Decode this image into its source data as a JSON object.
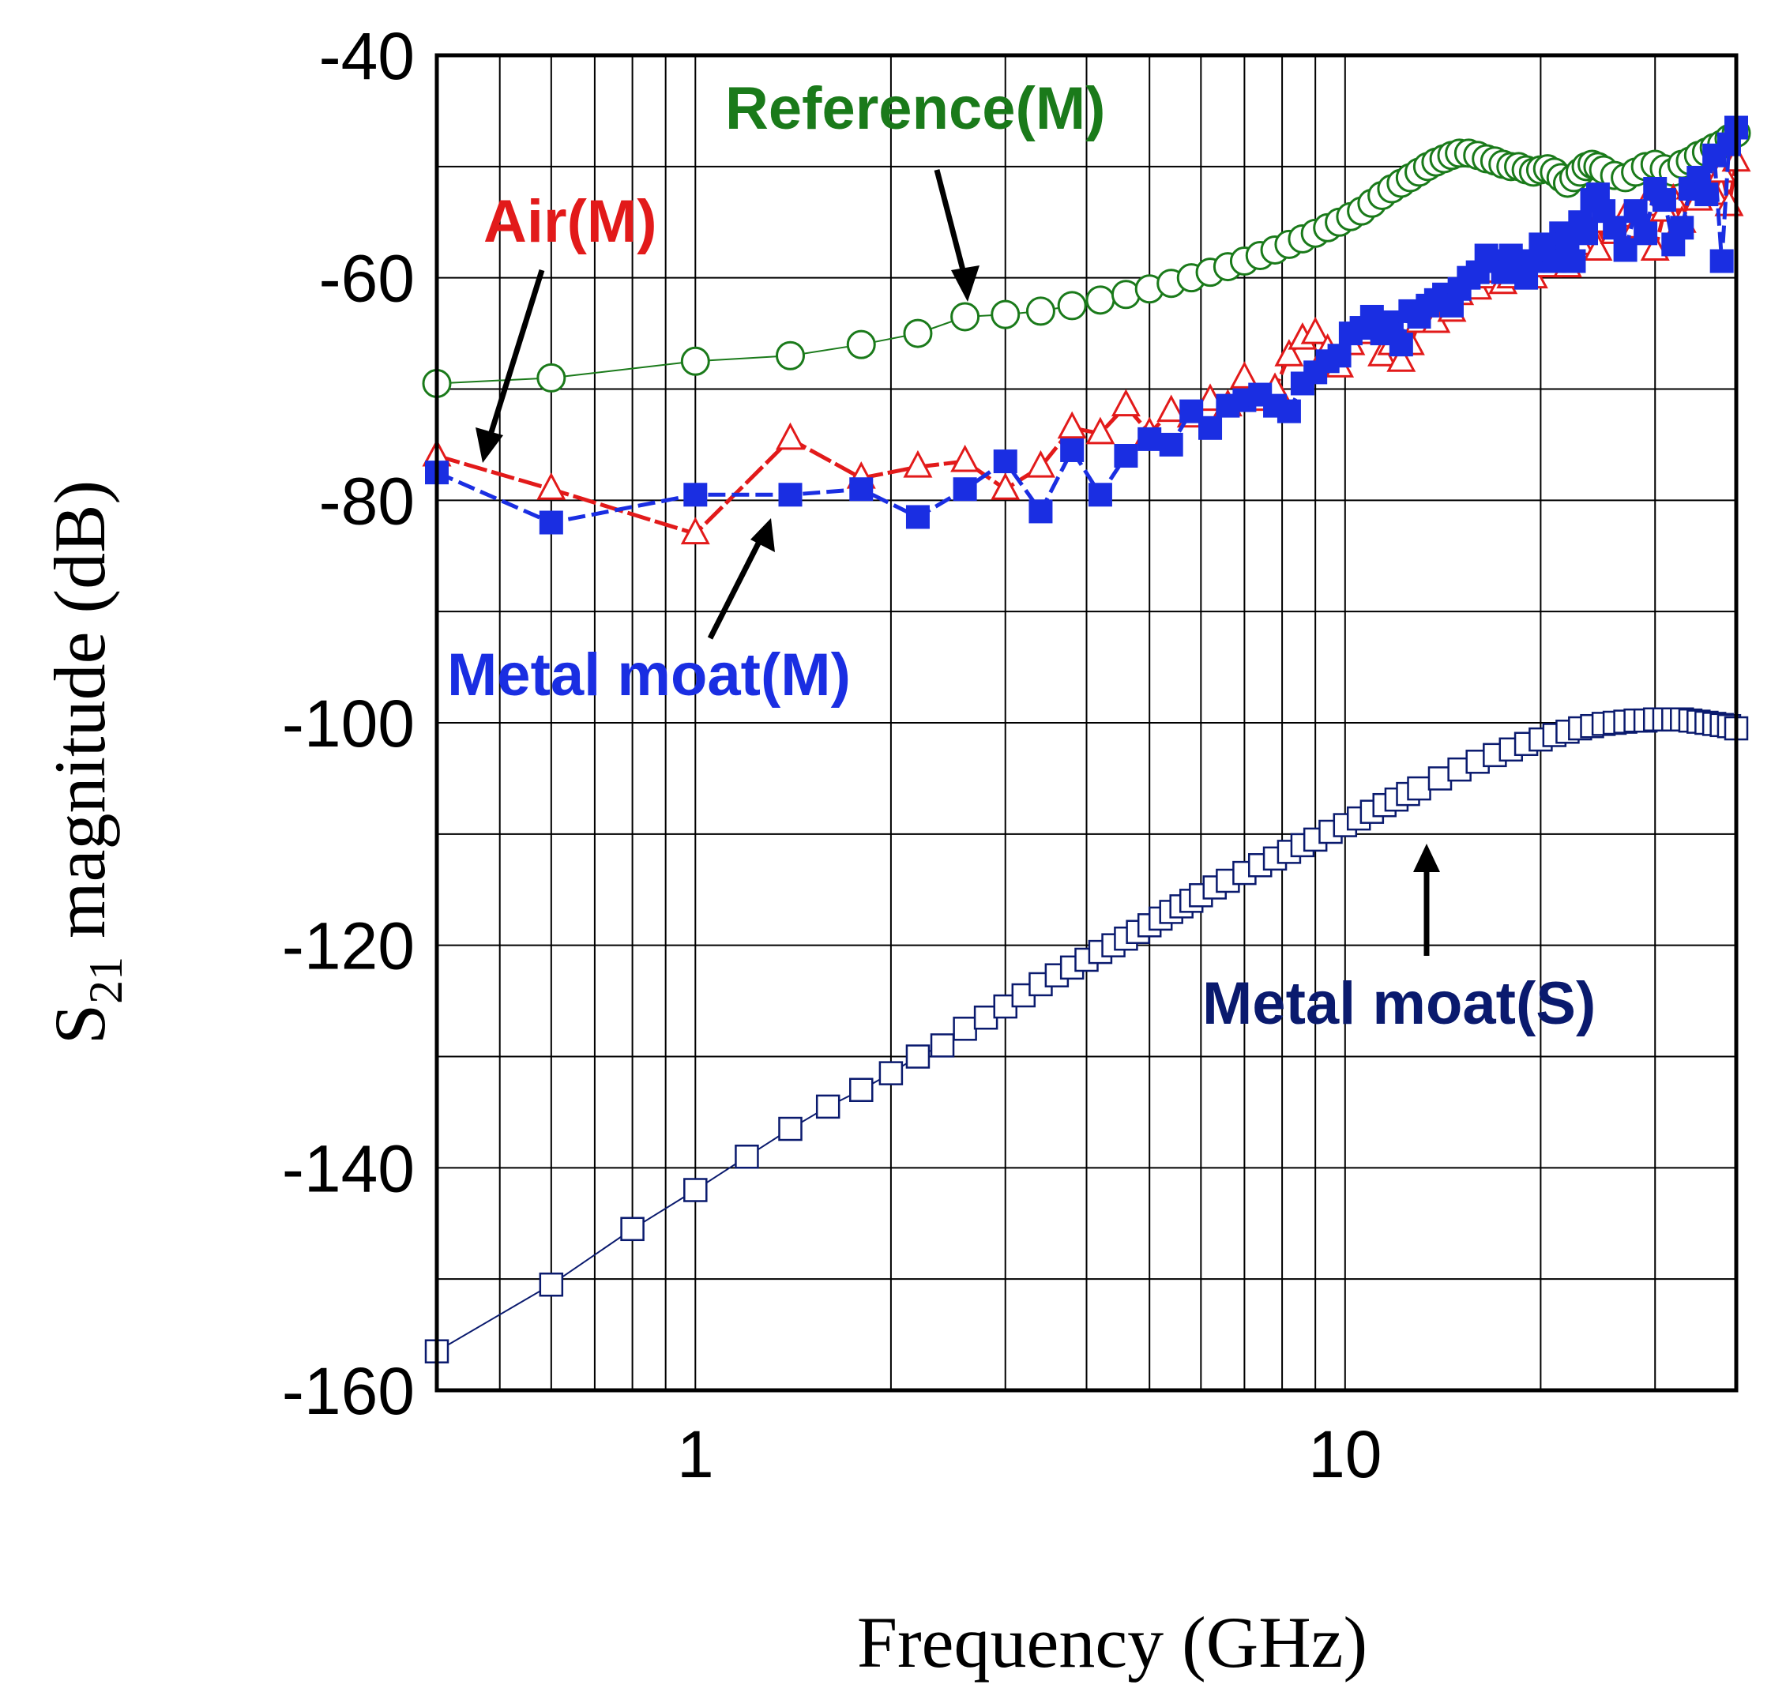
{
  "chart_data": {
    "type": "scatter",
    "xlabel": "Frequency (GHz)",
    "ylabel_main": "S",
    "ylabel_sub": "21",
    "ylabel_rest": " magnitude (dB)",
    "xscale": "log",
    "xlim": [
      0.4,
      40
    ],
    "ylim": [
      -160,
      -40
    ],
    "x_ticks": [
      {
        "value": 1,
        "label": "1"
      },
      {
        "value": 10,
        "label": "10"
      }
    ],
    "y_ticks": [
      {
        "value": -40,
        "label": "-40"
      },
      {
        "value": -60,
        "label": "-60"
      },
      {
        "value": -80,
        "label": "-80"
      },
      {
        "value": -100,
        "label": "-100"
      },
      {
        "value": -120,
        "label": "-120"
      },
      {
        "value": -140,
        "label": "-140"
      },
      {
        "value": -160,
        "label": "-160"
      }
    ],
    "grid": true,
    "series": [
      {
        "name": "Reference(M)",
        "color": "#1a7a1a",
        "marker": "open-circle",
        "x": [
          0.4,
          0.6,
          1.0,
          1.4,
          1.8,
          2.2,
          2.6,
          3.0,
          3.4,
          3.8,
          4.2,
          4.6,
          5.0,
          5.4,
          5.8,
          6.2,
          6.6,
          7.0,
          7.4,
          7.8,
          8.2,
          8.6,
          9.0,
          9.4,
          9.8,
          10.2,
          10.6,
          11.0,
          11.4,
          11.8,
          12.2,
          12.6,
          13.0,
          13.4,
          13.8,
          14.2,
          14.6,
          15.0,
          15.5,
          16.0,
          16.5,
          17.0,
          17.5,
          18.0,
          18.5,
          19.0,
          19.5,
          20.0,
          20.5,
          21.0,
          21.5,
          22.0,
          22.5,
          23.0,
          23.5,
          24.0,
          24.5,
          25.0,
          26.0,
          27.0,
          28.0,
          29.0,
          30.0,
          31.0,
          32.0,
          33.0,
          34.0,
          35.0,
          36.0,
          37.0,
          38.0,
          39.0,
          40.0
        ],
        "y": [
          -69.5,
          -69.0,
          -67.5,
          -67.0,
          -66.0,
          -65.0,
          -63.5,
          -63.3,
          -63.0,
          -62.5,
          -62.0,
          -61.5,
          -61.0,
          -60.5,
          -60.0,
          -59.5,
          -59.0,
          -58.5,
          -58.0,
          -57.5,
          -57.0,
          -56.5,
          -56.0,
          -55.5,
          -55.0,
          -54.5,
          -54.0,
          -53.3,
          -52.6,
          -52.0,
          -51.5,
          -51.0,
          -50.5,
          -50.0,
          -49.6,
          -49.3,
          -49.0,
          -48.8,
          -48.8,
          -49.0,
          -49.3,
          -49.5,
          -49.8,
          -50.0,
          -50.0,
          -50.3,
          -50.5,
          -50.3,
          -50.2,
          -50.5,
          -51.0,
          -51.5,
          -51.0,
          -50.5,
          -50.0,
          -49.8,
          -50.0,
          -50.3,
          -50.8,
          -51.0,
          -50.5,
          -50.0,
          -49.8,
          -50.2,
          -50.5,
          -49.8,
          -49.5,
          -49.0,
          -48.7,
          -48.3,
          -48.0,
          -47.5,
          -47.0
        ]
      },
      {
        "name": "Air(M)",
        "color": "#e21a1a",
        "marker": "open-triangle",
        "x": [
          0.4,
          0.6,
          1.0,
          1.4,
          1.8,
          2.2,
          2.6,
          3.0,
          3.4,
          3.8,
          4.2,
          4.6,
          5.0,
          5.4,
          5.8,
          6.2,
          6.6,
          7.0,
          7.4,
          7.8,
          8.2,
          8.6,
          9.0,
          9.4,
          9.8,
          10.2,
          10.6,
          11.0,
          11.4,
          11.8,
          12.2,
          12.6,
          13.0,
          13.4,
          13.8,
          14.2,
          14.6,
          15.0,
          15.5,
          16.0,
          16.5,
          17.0,
          17.5,
          18.0,
          18.5,
          19.0,
          19.5,
          20.0,
          20.5,
          21.0,
          21.5,
          22.0,
          22.5,
          23.0,
          23.5,
          24.0,
          24.5,
          25.0,
          26.0,
          27.0,
          28.0,
          29.0,
          30.0,
          31.0,
          32.0,
          33.0,
          34.0,
          35.0,
          36.0,
          37.0,
          38.0,
          39.0,
          40.0
        ],
        "y": [
          -76.0,
          -79.0,
          -83.0,
          -74.5,
          -78.0,
          -77.0,
          -76.5,
          -79.0,
          -77.0,
          -73.5,
          -74.0,
          -71.5,
          -74.0,
          -72.0,
          -72.5,
          -71.0,
          -71.5,
          -69.0,
          -71.0,
          -70.0,
          -67.0,
          -65.5,
          -65.0,
          -66.5,
          -68.0,
          -66.0,
          -65.0,
          -64.5,
          -67.0,
          -66.0,
          -67.5,
          -66.0,
          -64.0,
          -62.5,
          -64.0,
          -62.0,
          -63.0,
          -61.5,
          -60.5,
          -61.0,
          -60.0,
          -59.5,
          -60.5,
          -60.0,
          -59.0,
          -59.5,
          -60.0,
          -58.5,
          -59.0,
          -57.5,
          -58.0,
          -59.0,
          -56.5,
          -57.0,
          -55.5,
          -56.0,
          -57.5,
          -55.0,
          -56.0,
          -54.5,
          -55.5,
          -53.5,
          -57.5,
          -54.0,
          -53.0,
          -55.0,
          -52.0,
          -53.0,
          -51.5,
          -52.5,
          -50.5,
          -53.5,
          -49.5
        ]
      },
      {
        "name": "Metal moat(M)",
        "color": "#1a2ee2",
        "marker": "filled-square",
        "x": [
          0.4,
          0.6,
          1.0,
          1.4,
          1.8,
          2.2,
          2.6,
          3.0,
          3.4,
          3.8,
          4.2,
          4.6,
          5.0,
          5.4,
          5.8,
          6.2,
          6.6,
          7.0,
          7.4,
          7.8,
          8.2,
          8.6,
          9.0,
          9.4,
          9.8,
          10.2,
          10.6,
          11.0,
          11.4,
          11.8,
          12.2,
          12.6,
          13.0,
          13.4,
          13.8,
          14.2,
          14.6,
          15.0,
          15.5,
          16.0,
          16.5,
          17.0,
          17.5,
          18.0,
          18.5,
          19.0,
          19.5,
          20.0,
          20.5,
          21.0,
          21.5,
          22.0,
          22.5,
          23.0,
          23.5,
          24.0,
          24.5,
          25.0,
          26.0,
          27.0,
          28.0,
          29.0,
          30.0,
          31.0,
          32.0,
          33.0,
          34.0,
          35.0,
          36.0,
          37.0,
          38.0,
          39.0,
          40.0
        ],
        "y": [
          -77.5,
          -82.0,
          -79.5,
          -79.5,
          -79.0,
          -81.5,
          -79.0,
          -76.5,
          -81.0,
          -75.5,
          -79.5,
          -76.0,
          -74.5,
          -75.0,
          -72.0,
          -73.5,
          -71.5,
          -71.0,
          -70.5,
          -71.5,
          -72.0,
          -69.5,
          -68.5,
          -67.5,
          -67.0,
          -65.0,
          -64.5,
          -63.5,
          -65.0,
          -64.0,
          -66.0,
          -63.0,
          -63.5,
          -62.5,
          -62.0,
          -61.5,
          -62.5,
          -61.0,
          -60.0,
          -59.5,
          -58.0,
          -58.5,
          -59.5,
          -58.0,
          -59.0,
          -60.0,
          -58.5,
          -57.0,
          -57.5,
          -58.5,
          -56.0,
          -57.0,
          -58.5,
          -55.0,
          -56.0,
          -53.0,
          -52.5,
          -54.0,
          -55.5,
          -57.5,
          -54.0,
          -56.0,
          -52.0,
          -53.0,
          -57.0,
          -55.5,
          -52.0,
          -51.0,
          -52.5,
          -49.0,
          -58.5,
          -48.0,
          -46.5
        ]
      },
      {
        "name": "Metal moat(S)",
        "color": "#0a1a6e",
        "marker": "open-square",
        "x": [
          0.4,
          0.6,
          0.8,
          1.0,
          1.2,
          1.4,
          1.6,
          1.8,
          2.0,
          2.2,
          2.4,
          2.6,
          2.8,
          3.0,
          3.2,
          3.4,
          3.6,
          3.8,
          4.0,
          4.2,
          4.4,
          4.6,
          4.8,
          5.0,
          5.2,
          5.4,
          5.6,
          5.8,
          6.0,
          6.3,
          6.6,
          7.0,
          7.4,
          7.8,
          8.2,
          8.6,
          9.0,
          9.5,
          10.0,
          10.5,
          11.0,
          11.5,
          12.0,
          12.5,
          13.0,
          14.0,
          15.0,
          16.0,
          17.0,
          18.0,
          19.0,
          20.0,
          21.0,
          22.0,
          23.0,
          24.0,
          25.0,
          26.0,
          27.0,
          28.0,
          29.0,
          30.0,
          31.0,
          32.0,
          33.0,
          34.0,
          35.0,
          36.0,
          37.0,
          38.0,
          39.0,
          40.0
        ],
        "y": [
          -156.5,
          -150.5,
          -145.5,
          -142.0,
          -139.0,
          -136.5,
          -134.5,
          -133.0,
          -131.5,
          -130.0,
          -129.0,
          -127.5,
          -126.5,
          -125.5,
          -124.5,
          -123.5,
          -122.7,
          -122.0,
          -121.3,
          -120.6,
          -120.0,
          -119.4,
          -118.8,
          -118.2,
          -117.6,
          -117.0,
          -116.5,
          -116.0,
          -115.5,
          -114.8,
          -114.2,
          -113.5,
          -112.8,
          -112.2,
          -111.6,
          -111.0,
          -110.5,
          -109.8,
          -109.2,
          -108.6,
          -108.0,
          -107.4,
          -106.9,
          -106.4,
          -105.9,
          -105.0,
          -104.2,
          -103.5,
          -102.9,
          -102.4,
          -101.9,
          -101.5,
          -101.1,
          -100.8,
          -100.5,
          -100.3,
          -100.1,
          -100.0,
          -99.9,
          -99.8,
          -99.8,
          -99.7,
          -99.7,
          -99.7,
          -99.7,
          -99.8,
          -99.9,
          -100.0,
          -100.1,
          -100.2,
          -100.3,
          -100.5
        ]
      }
    ],
    "annotations": [
      {
        "text": "Reference(M)",
        "color": "#1a7a1a"
      },
      {
        "text": "Air(M)",
        "color": "#e21a1a"
      },
      {
        "text": "Metal moat(M)",
        "color": "#1a2ee2"
      },
      {
        "text": "Metal moat(S)",
        "color": "#0a1a6e"
      }
    ]
  }
}
